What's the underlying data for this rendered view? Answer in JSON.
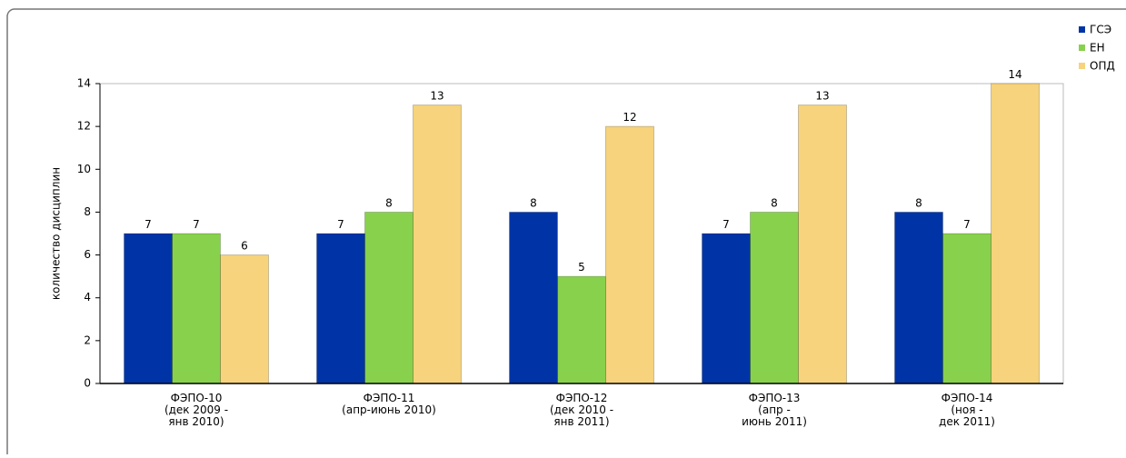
{
  "chart_data": {
    "type": "bar",
    "y_label": "количество дисциплин",
    "categories": [
      "ФЭПО-10\n(дек 2009 -\nянв 2010)",
      "ФЭПО-11\n(апр-июнь 2010)",
      "ФЭПО-12\n(дек 2010 -\nянв 2011)",
      "ФЭПО-13\n(апр -\nиюнь 2011)",
      "ФЭПО-14\n(ноя -\nдек 2011)"
    ],
    "series": [
      {
        "name": "ГСЭ",
        "color": "#0033a6",
        "values": [
          7,
          7,
          8,
          7,
          8
        ]
      },
      {
        "name": "ЕН",
        "color": "#88d14c",
        "values": [
          7,
          8,
          5,
          8,
          7
        ]
      },
      {
        "name": "ОПД",
        "color": "#f6d37c",
        "values": [
          6,
          13,
          12,
          13,
          14
        ]
      }
    ],
    "ylim": [
      0,
      14
    ],
    "yticks": [
      0,
      2,
      4,
      6,
      8,
      10,
      12,
      14
    ],
    "grid": false,
    "legend": "top-right"
  }
}
